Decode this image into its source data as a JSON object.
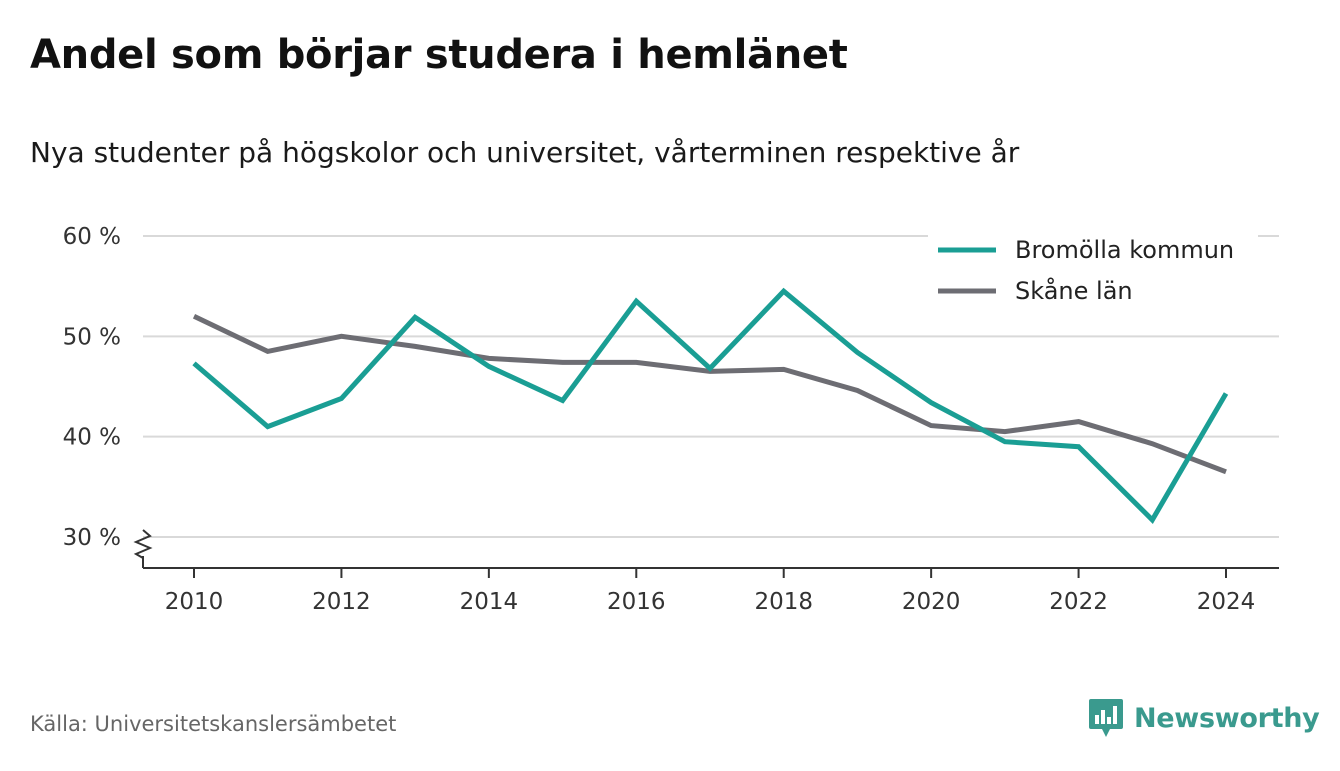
{
  "title": "Andel som börjar studera i hemlänet",
  "subtitle": "Nya studenter på högskolor och universitet, vårterminen respektive år",
  "source": "Källa: Universitetskanslersämbetet",
  "brand": {
    "name": "Newsworthy",
    "icon": "newsworthy-logo-icon",
    "color": "#3a9a8e"
  },
  "chart_data": {
    "type": "line",
    "x": [
      2010,
      2011,
      2012,
      2013,
      2014,
      2015,
      2016,
      2017,
      2018,
      2019,
      2020,
      2021,
      2022,
      2023,
      2024
    ],
    "x_ticks": [
      "2010",
      "2012",
      "2014",
      "2016",
      "2018",
      "2020",
      "2022",
      "2024"
    ],
    "y_ticks": [
      "30 %",
      "40 %",
      "50 %",
      "60 %"
    ],
    "ylim": [
      30,
      60
    ],
    "y_axis_break": true,
    "grid": true,
    "legend_position": "top-right",
    "series": [
      {
        "name": "Bromölla kommun",
        "color": "#1a9e94",
        "values": [
          47.3,
          41.0,
          43.8,
          51.9,
          47.0,
          43.6,
          53.5,
          46.8,
          54.5,
          48.4,
          43.4,
          39.5,
          39.0,
          31.7,
          44.3
        ]
      },
      {
        "name": "Skåne län",
        "color": "#6d6d73",
        "values": [
          52.0,
          48.5,
          50.0,
          49.0,
          47.8,
          47.4,
          47.4,
          46.5,
          46.7,
          44.6,
          41.1,
          40.5,
          41.5,
          39.3,
          36.5
        ]
      }
    ]
  }
}
